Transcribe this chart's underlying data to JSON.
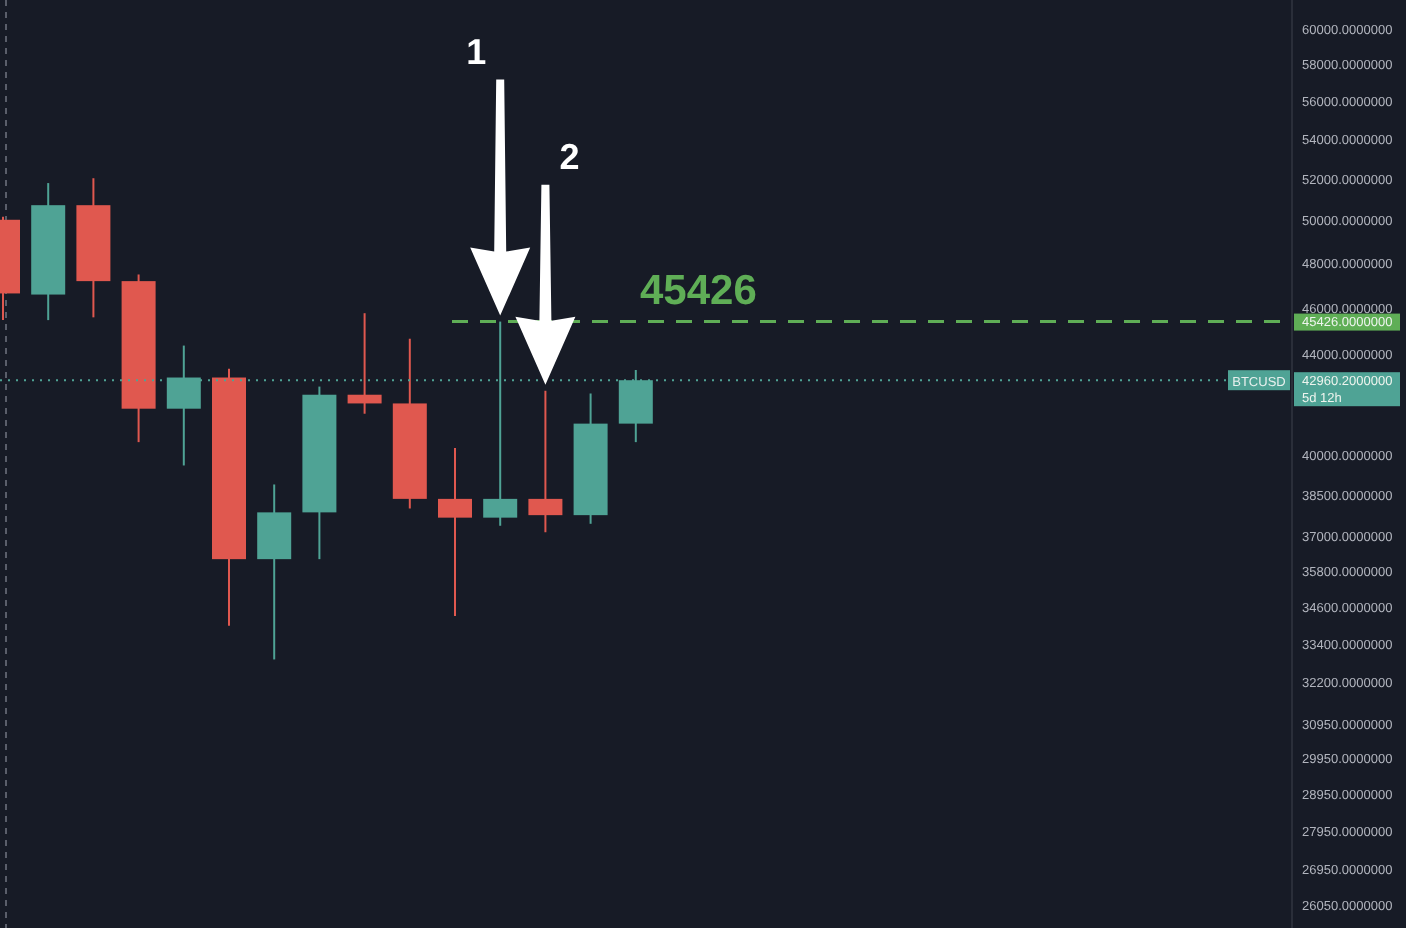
{
  "chart_data": {
    "type": "candlestick",
    "categories": [
      null,
      null,
      null,
      null,
      null,
      null,
      null,
      null,
      null,
      null,
      null,
      null,
      null,
      null,
      null,
      null,
      null,
      null,
      null,
      null,
      null,
      null,
      null,
      null,
      null,
      null,
      null,
      null,
      null
    ],
    "ohlc": [
      [
        50050,
        50200,
        45490,
        46660
      ],
      [
        46610,
        51830,
        45490,
        50750
      ],
      [
        50750,
        52070,
        45610,
        47210
      ],
      [
        47210,
        47510,
        40500,
        41810
      ],
      [
        41810,
        44400,
        39610,
        43070
      ],
      [
        43070,
        43430,
        34000,
        36230
      ],
      [
        36230,
        38900,
        32930,
        37880
      ],
      [
        37880,
        42700,
        36230,
        42370
      ],
      [
        42370,
        45790,
        41610,
        42020
      ],
      [
        42020,
        44690,
        38020,
        38370
      ],
      [
        38370,
        40270,
        34320,
        37690
      ],
      [
        37690,
        45426,
        37400,
        38370
      ],
      [
        38370,
        42530,
        37170,
        37780
      ],
      [
        37780,
        42420,
        37470,
        41220
      ],
      [
        41220,
        43380,
        40500,
        42960
      ],
      null,
      null,
      null,
      null,
      null,
      null,
      null,
      null,
      null,
      null,
      null,
      null,
      null,
      null
    ],
    "colors": [
      "#e0584f",
      "#4fa395",
      "#e0584f",
      "#e0584f",
      "#4fa395",
      "#e0584f",
      "#4fa395",
      "#4fa395",
      "#e0584f",
      "#e0584f",
      "#e0584f",
      "#4fa395",
      "#e0584f",
      "#4fa395",
      "#4fa395",
      null,
      null,
      null,
      null,
      null,
      null,
      null,
      null,
      null,
      null,
      null,
      null,
      null,
      null
    ],
    "ylim": [
      25500,
      61700
    ],
    "yticks": [
      {
        "value": 26050,
        "label": "26050.0000000"
      },
      {
        "value": 26950,
        "label": "26950.0000000"
      },
      {
        "value": 27950,
        "label": "27950.0000000"
      },
      {
        "value": 28950,
        "label": "28950.0000000"
      },
      {
        "value": 29950,
        "label": "29950.0000000"
      },
      {
        "value": 30950,
        "label": "30950.0000000"
      },
      {
        "value": 32200,
        "label": "32200.0000000"
      },
      {
        "value": 33400,
        "label": "33400.0000000"
      },
      {
        "value": 34600,
        "label": "34600.0000000"
      },
      {
        "value": 35800,
        "label": "35800.0000000"
      },
      {
        "value": 37000,
        "label": "37000.0000000"
      },
      {
        "value": 38500,
        "label": "38500.0000000"
      },
      {
        "value": 40000,
        "label": "40000.0000000"
      },
      {
        "value": 44000,
        "label": "44000.0000000"
      },
      {
        "value": 46000,
        "label": "46000.0000000"
      },
      {
        "value": 48000,
        "label": "48000.0000000"
      },
      {
        "value": 50000,
        "label": "50000.0000000"
      },
      {
        "value": 52000,
        "label": "52000.0000000"
      },
      {
        "value": 54000,
        "label": "54000.0000000"
      },
      {
        "value": 56000,
        "label": "56000.0000000"
      },
      {
        "value": 58000,
        "label": "58000.0000000"
      },
      {
        "value": 60000,
        "label": "60000.0000000"
      }
    ],
    "log": "y",
    "tick_labels": "y",
    "ref_lines": [
      {
        "axis": "y",
        "value": 45426,
        "label": "45426",
        "color": "#5fae56",
        "line_style": "dashed"
      },
      {
        "axis": "y",
        "value": 42960.2,
        "label": "BTCUSD",
        "color": "#4fa395",
        "line_style": "dotted"
      }
    ],
    "annotations": [
      "1",
      "2",
      "45426.0000000",
      "42960.2000000",
      "5d 12h"
    ]
  }
}
